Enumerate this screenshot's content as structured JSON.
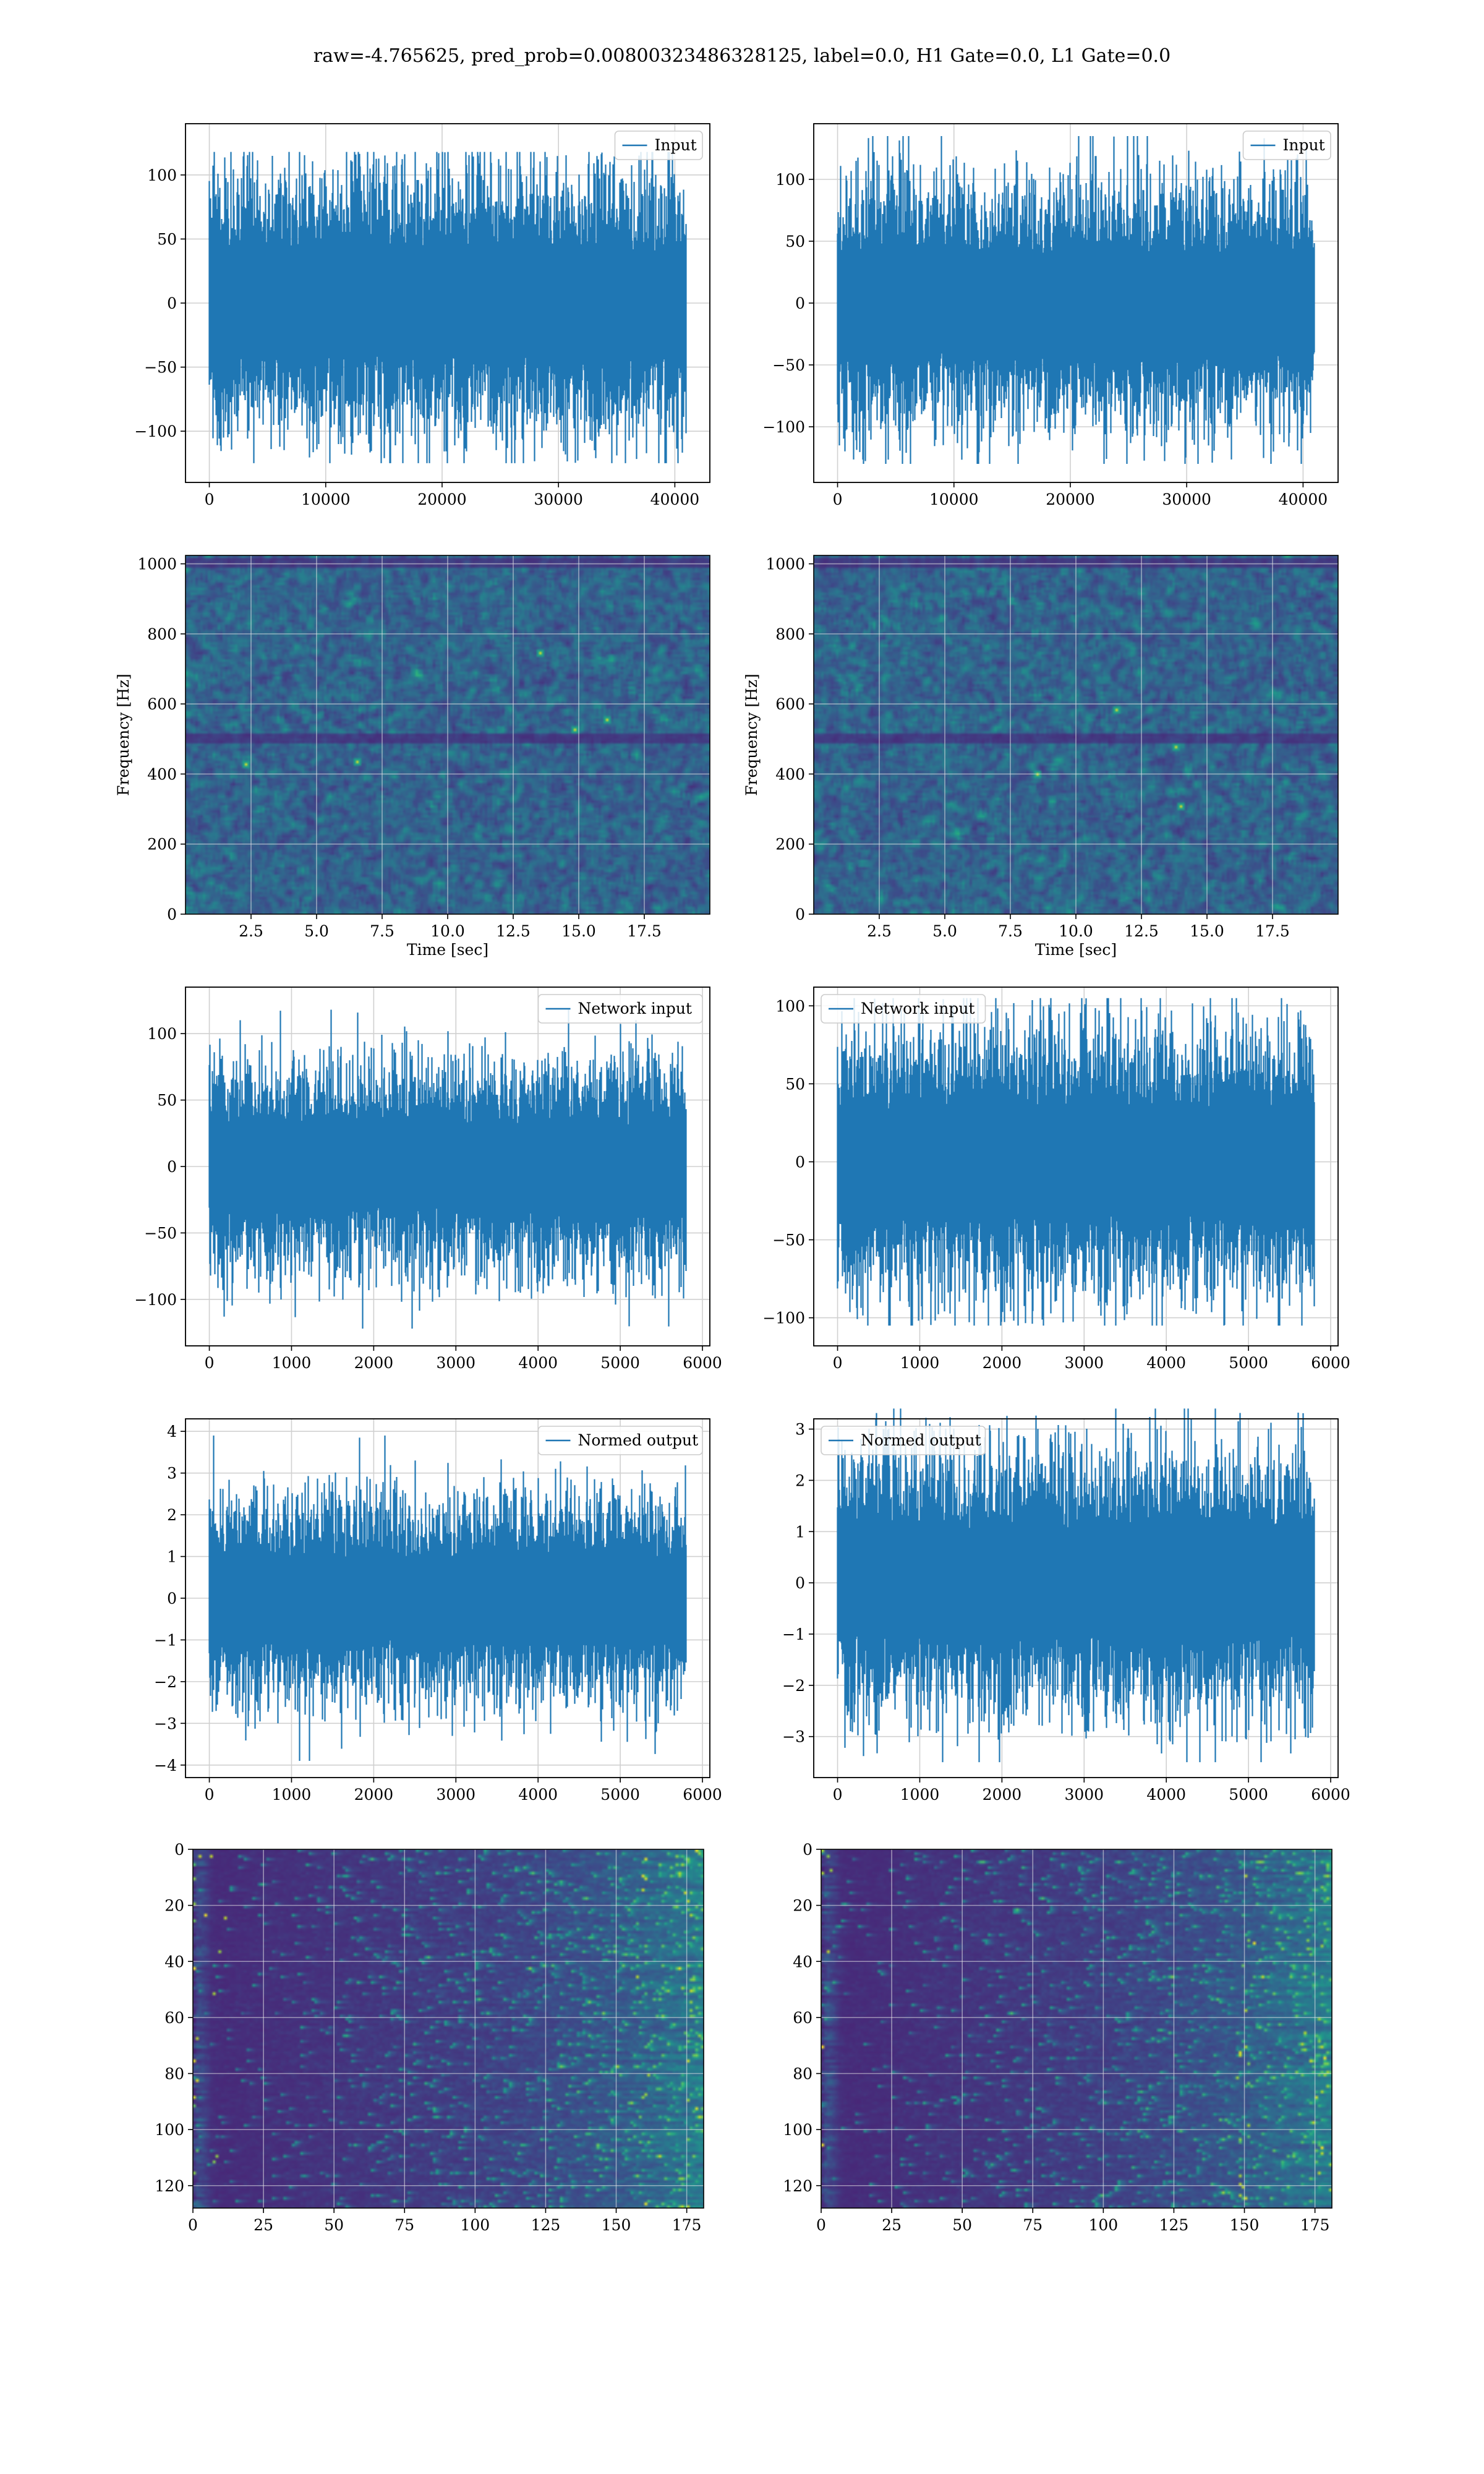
{
  "suptitle": "raw=-4.765625, pred_prob=0.00800323486328125, label=0.0, H1 Gate=0.0, L1 Gate=0.0",
  "colors": {
    "series": "#1f77b4",
    "grid": "#d0d0d0",
    "viridis_dark": "#440154",
    "viridis_mid": "#21918c",
    "viridis_bright": "#fde725"
  },
  "chart_data": [
    {
      "type": "line",
      "panel": "row1-left",
      "series": [
        {
          "name": "Input",
          "n": 40960,
          "envelope_mean_abs": 45,
          "peak_range": [
            -125,
            118
          ]
        }
      ],
      "legend": "upper right",
      "xlim": [
        -2048,
        43008
      ],
      "ylim": [
        -140,
        140
      ],
      "xticks": [
        0,
        10000,
        20000,
        30000,
        40000
      ],
      "xticklabels": [
        "0",
        "10000",
        "20000",
        "30000",
        "40000"
      ],
      "yticks": [
        100,
        50,
        0,
        -50,
        -100
      ],
      "yticklabels": [
        "100",
        "50",
        "0",
        "−50",
        "−100"
      ],
      "xlabel": "",
      "ylabel": "",
      "grid": true
    },
    {
      "type": "line",
      "panel": "row1-right",
      "series": [
        {
          "name": "Input",
          "n": 40960,
          "envelope_mean_abs": 45,
          "peak_range": [
            -130,
            135
          ]
        }
      ],
      "legend": "upper right",
      "xlim": [
        -2048,
        43008
      ],
      "ylim": [
        -145,
        145
      ],
      "xticks": [
        0,
        10000,
        20000,
        30000,
        40000
      ],
      "xticklabels": [
        "0",
        "10000",
        "20000",
        "30000",
        "40000"
      ],
      "yticks": [
        100,
        50,
        0,
        -50,
        -100
      ],
      "yticklabels": [
        "100",
        "50",
        "0",
        "−50",
        "−100"
      ],
      "xlabel": "",
      "ylabel": "",
      "grid": true
    },
    {
      "type": "heatmap",
      "panel": "row2-left",
      "xlim": [
        0,
        20
      ],
      "ylim": [
        0,
        1024
      ],
      "xticks": [
        2.5,
        5.0,
        7.5,
        10.0,
        12.5,
        15.0,
        17.5
      ],
      "xticklabels": [
        "2.5",
        "5.0",
        "7.5",
        "10.0",
        "12.5",
        "15.0",
        "17.5"
      ],
      "yticks": [
        0,
        200,
        400,
        600,
        800,
        1000
      ],
      "yticklabels": [
        "0",
        "200",
        "400",
        "600",
        "800",
        "1000"
      ],
      "xlabel": "Time [sec]",
      "ylabel": "Frequency [Hz]",
      "colormap": "viridis",
      "grid": true,
      "dark_bands_hz": [
        500,
        1000
      ],
      "bright_spots": [
        [
          2.3,
          430
        ],
        [
          13.5,
          750
        ],
        [
          14.8,
          530
        ],
        [
          6.5,
          440
        ],
        [
          16.0,
          560
        ]
      ]
    },
    {
      "type": "heatmap",
      "panel": "row2-right",
      "xlim": [
        0,
        20
      ],
      "ylim": [
        0,
        1024
      ],
      "xticks": [
        2.5,
        5.0,
        7.5,
        10.0,
        12.5,
        15.0,
        17.5
      ],
      "xticklabels": [
        "2.5",
        "5.0",
        "7.5",
        "10.0",
        "12.5",
        "15.0",
        "17.5"
      ],
      "yticks": [
        0,
        200,
        400,
        600,
        800,
        1000
      ],
      "yticklabels": [
        "0",
        "200",
        "400",
        "600",
        "800",
        "1000"
      ],
      "xlabel": "Time [sec]",
      "ylabel": "Frequency [Hz]",
      "colormap": "viridis",
      "grid": true,
      "dark_bands_hz": [
        500,
        1000
      ],
      "bright_spots": [
        [
          11.5,
          585
        ],
        [
          13.8,
          480
        ],
        [
          8.5,
          400
        ],
        [
          14.0,
          310
        ]
      ]
    },
    {
      "type": "line",
      "panel": "row3-left",
      "series": [
        {
          "name": "Network input",
          "n": 5800,
          "envelope_mean_abs": 35,
          "peak_range": [
            -122,
            118
          ]
        }
      ],
      "legend": "upper right",
      "xlim": [
        -290,
        6090
      ],
      "ylim": [
        -135,
        135
      ],
      "xticks": [
        0,
        1000,
        2000,
        3000,
        4000,
        5000,
        6000
      ],
      "xticklabels": [
        "0",
        "1000",
        "2000",
        "3000",
        "4000",
        "5000",
        "6000"
      ],
      "yticks": [
        100,
        50,
        0,
        -50,
        -100
      ],
      "yticklabels": [
        "100",
        "50",
        "0",
        "−50",
        "−100"
      ],
      "xlabel": "",
      "ylabel": "",
      "grid": true
    },
    {
      "type": "line",
      "panel": "row3-right",
      "series": [
        {
          "name": "Network input",
          "n": 5800,
          "envelope_mean_abs": 38,
          "peak_range": [
            -105,
            105
          ]
        }
      ],
      "legend": "upper left",
      "xlim": [
        -290,
        6090
      ],
      "ylim": [
        -118,
        112
      ],
      "xticks": [
        0,
        1000,
        2000,
        3000,
        4000,
        5000,
        6000
      ],
      "xticklabels": [
        "0",
        "1000",
        "2000",
        "3000",
        "4000",
        "5000",
        "6000"
      ],
      "yticks": [
        100,
        50,
        0,
        -50,
        -100
      ],
      "yticklabels": [
        "100",
        "50",
        "0",
        "−50",
        "−100"
      ],
      "xlabel": "",
      "ylabel": "",
      "grid": true
    },
    {
      "type": "line",
      "panel": "row4-left",
      "series": [
        {
          "name": "Normed output",
          "n": 5800,
          "envelope_mean_abs": 1.1,
          "peak_range": [
            -3.9,
            3.9
          ]
        }
      ],
      "legend": "upper right",
      "xlim": [
        -290,
        6090
      ],
      "ylim": [
        -4.3,
        4.3
      ],
      "xticks": [
        0,
        1000,
        2000,
        3000,
        4000,
        5000,
        6000
      ],
      "xticklabels": [
        "0",
        "1000",
        "2000",
        "3000",
        "4000",
        "5000",
        "6000"
      ],
      "yticks": [
        4,
        3,
        2,
        1,
        0,
        -1,
        -2,
        -3,
        -4
      ],
      "yticklabels": [
        "4",
        "3",
        "2",
        "1",
        "0",
        "−1",
        "−2",
        "−3",
        "−4"
      ],
      "xlabel": "",
      "ylabel": "",
      "grid": true
    },
    {
      "type": "line",
      "panel": "row4-right",
      "series": [
        {
          "name": "Normed output",
          "n": 5800,
          "envelope_mean_abs": 1.15,
          "peak_range": [
            -3.5,
            3.4
          ]
        }
      ],
      "legend": "upper left",
      "xlim": [
        -290,
        6090
      ],
      "ylim": [
        -3.8,
        3.2
      ],
      "xticks": [
        0,
        1000,
        2000,
        3000,
        4000,
        5000,
        6000
      ],
      "xticklabels": [
        "0",
        "1000",
        "2000",
        "3000",
        "4000",
        "5000",
        "6000"
      ],
      "yticks": [
        3,
        2,
        1,
        0,
        -1,
        -2,
        -3
      ],
      "yticklabels": [
        "3",
        "2",
        "1",
        "0",
        "−1",
        "−2",
        "−3"
      ],
      "xlabel": "",
      "ylabel": "",
      "grid": true
    },
    {
      "type": "heatmap",
      "panel": "row5-left",
      "xlim": [
        0,
        181
      ],
      "ylim": [
        128,
        0
      ],
      "xticks": [
        0,
        25,
        50,
        75,
        100,
        125,
        150,
        175
      ],
      "xticklabels": [
        "0",
        "25",
        "50",
        "75",
        "100",
        "125",
        "150",
        "175"
      ],
      "yticks": [
        0,
        20,
        40,
        60,
        80,
        100,
        120
      ],
      "yticklabels": [
        "0",
        "20",
        "40",
        "60",
        "80",
        "100",
        "120"
      ],
      "xlabel": "",
      "ylabel": "",
      "colormap": "viridis",
      "grid": true,
      "bright_columns": [
        0,
        8,
        160,
        175
      ]
    },
    {
      "type": "heatmap",
      "panel": "row5-right",
      "xlim": [
        0,
        181
      ],
      "ylim": [
        128,
        0
      ],
      "xticks": [
        0,
        25,
        50,
        75,
        100,
        125,
        150,
        175
      ],
      "xticklabels": [
        "0",
        "25",
        "50",
        "75",
        "100",
        "125",
        "150",
        "175"
      ],
      "yticks": [
        0,
        20,
        40,
        60,
        80,
        100,
        120
      ],
      "yticklabels": [
        "0",
        "20",
        "40",
        "60",
        "80",
        "100",
        "120"
      ],
      "xlabel": "",
      "ylabel": "",
      "colormap": "viridis",
      "grid": true,
      "bright_columns": [
        0,
        150,
        175
      ]
    }
  ]
}
